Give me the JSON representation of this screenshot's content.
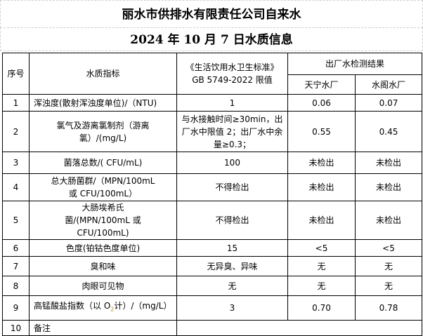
{
  "title": "丽水市供排水有限责任公司自来水",
  "subtitle": "2024 年 10 月 7 日水质信息",
  "header": {
    "no": "序号",
    "indicator": "水质指标",
    "standard_line1": "《生活饮用水卫生标准》",
    "standard_line2": "GB 5749-2022 限值",
    "results": "出厂水检测结果",
    "plant1": "天宁水厂",
    "plant2": "水阁水厂"
  },
  "rows": [
    {
      "no": "1",
      "indicator": "浑浊度(散射浑浊度单位)/（NTU)",
      "limit": "1",
      "p1": "0.06",
      "p2": "0.07"
    },
    {
      "no": "2",
      "indicator": "氯气及游离氯制剂（游离氯）/(mg/L)",
      "limit": "与水接触时间≥30min，出厂水中限值 2；出厂水中余量≥0.3；",
      "p1": "0.55",
      "p2": "0.45"
    },
    {
      "no": "3",
      "indicator": "菌落总数/( CFU/mL)",
      "limit": "100",
      "p1": "未检出",
      "p2": "未检出"
    },
    {
      "no": "4",
      "indicator": "总大肠菌群/（MPN/100mL 或 CFU/100mL）",
      "limit": "不得检出",
      "p1": "未检出",
      "p2": "未检出"
    },
    {
      "no": "5",
      "indicator": "大肠埃希氏菌/(MPN/100mL 或 CFU/100mL)",
      "limit": "不得检出",
      "p1": "未检出",
      "p2": "未检出"
    },
    {
      "no": "6",
      "indicator": "色度(铂钴色度单位)",
      "limit": "15",
      "p1": "<5",
      "p2": "<5"
    },
    {
      "no": "7",
      "indicator": "臭和味",
      "limit": "无异臭、异味",
      "p1": "无",
      "p2": "无"
    },
    {
      "no": "8",
      "indicator": "肉眼可见物",
      "limit": "无",
      "p1": "无",
      "p2": "无"
    },
    {
      "no": "9",
      "indicator_pre": "高锰酸盐指数（以 O",
      "indicator_sub": "2",
      "indicator_post": "计）/（mg/L）",
      "limit": "3",
      "p1": "0.70",
      "p2": "0.78"
    },
    {
      "no": "10",
      "indicator": "备注",
      "limit": ""
    }
  ]
}
